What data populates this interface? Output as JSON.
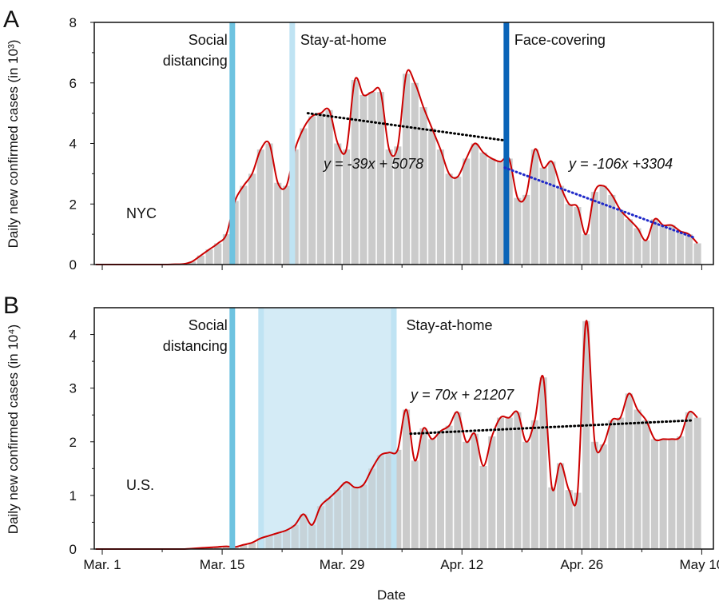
{
  "chart_data": [
    {
      "type": "bar",
      "panel_label": "A",
      "region_label": "NYC",
      "title": "",
      "xlabel": "",
      "ylabel": "Daily new confirmed cases (in 10³)",
      "x_start_date": "Mar. 1",
      "ylim": [
        0,
        8
      ],
      "yticks": [
        0,
        2,
        4,
        6,
        8
      ],
      "yticks_minor": [
        1,
        3,
        5,
        7
      ],
      "values": [
        0,
        0,
        0,
        0,
        0,
        0,
        0,
        0,
        0.01,
        0.02,
        0.1,
        0.3,
        0.5,
        0.7,
        1.0,
        2.1,
        2.6,
        3.0,
        3.8,
        4.0,
        2.7,
        2.6,
        3.8,
        4.5,
        4.9,
        5.0,
        5.1,
        4.0,
        3.8,
        6.1,
        5.6,
        5.7,
        5.7,
        3.8,
        3.9,
        6.3,
        6.0,
        5.2,
        4.5,
        3.8,
        3.0,
        2.9,
        3.5,
        4.0,
        3.7,
        3.5,
        3.4,
        3.5,
        2.2,
        2.3,
        3.8,
        3.2,
        3.4,
        2.6,
        2.0,
        1.9,
        1.0,
        2.4,
        2.6,
        2.3,
        1.8,
        1.5,
        1.2,
        0.8,
        1.5,
        1.3,
        1.3,
        1.1,
        1.0,
        0.7
      ],
      "smoothed_series_color": "#cc0000",
      "bar_color": "#c8c8c8",
      "policies": [
        {
          "label_lines": [
            "Social",
            "distancing"
          ],
          "day": 15,
          "color": "#6ec3e0"
        },
        {
          "label_lines": [
            "Stay-at-home"
          ],
          "day": 22,
          "color": "#bfe3f3"
        },
        {
          "label_lines": [
            "Face-covering"
          ],
          "day": 47,
          "color": "#0a64b8"
        }
      ],
      "trendlines": [
        {
          "equation": "y = -39x + 5078",
          "from_day": 24,
          "to_day": 47,
          "from_y": 5.0,
          "to_y": 4.1,
          "color": "#000000"
        },
        {
          "equation": "y = -106x +3304",
          "from_day": 47,
          "to_day": 69,
          "from_y": 3.2,
          "to_y": 0.9,
          "color": "#1e28c8"
        }
      ]
    },
    {
      "type": "bar",
      "panel_label": "B",
      "region_label": "U.S.",
      "title": "",
      "xlabel": "Date",
      "ylabel": "Daily new confirmed cases (in 10⁴)",
      "x_start_date": "Mar. 1",
      "ylim": [
        0,
        4.5
      ],
      "yticks": [
        0,
        1,
        2,
        3,
        4
      ],
      "yticks_minor": [
        0.5,
        1.5,
        2.5,
        3.5
      ],
      "xticks": [
        {
          "label": "Mar. 1",
          "day": 0
        },
        {
          "label": "Mar. 15",
          "day": 14
        },
        {
          "label": "Mar. 29",
          "day": 28
        },
        {
          "label": "Apr. 12",
          "day": 42
        },
        {
          "label": "Apr. 26",
          "day": 56
        },
        {
          "label": "May 10",
          "day": 70
        }
      ],
      "values": [
        0,
        0,
        0,
        0,
        0,
        0,
        0,
        0,
        0,
        0,
        0.01,
        0.02,
        0.03,
        0.04,
        0.05,
        0.04,
        0.08,
        0.12,
        0.2,
        0.25,
        0.3,
        0.35,
        0.45,
        0.65,
        0.45,
        0.8,
        0.95,
        1.1,
        1.25,
        1.15,
        1.2,
        1.5,
        1.75,
        1.8,
        1.85,
        2.6,
        1.65,
        2.25,
        2.05,
        2.2,
        2.3,
        2.55,
        2.0,
        2.15,
        1.55,
        2.1,
        2.45,
        2.45,
        2.55,
        2.0,
        2.4,
        3.2,
        1.15,
        1.6,
        1.1,
        1.05,
        4.25,
        2.0,
        1.95,
        2.4,
        2.45,
        2.9,
        2.6,
        2.4,
        2.05,
        2.05,
        2.05,
        2.1,
        2.55,
        2.45
      ],
      "smoothed_series_color": "#cc0000",
      "bar_color": "#c8c8c8",
      "policies": [
        {
          "label_lines": [
            "Social",
            "distancing"
          ],
          "day": 15,
          "color": "#6ec3e0"
        },
        {
          "label_lines": [
            "Stay-at-home"
          ],
          "day_start": 18.5,
          "day_end": 34,
          "color": "#bfe3f3",
          "band": true
        }
      ],
      "trendlines": [
        {
          "equation": "y = 70x + 21207",
          "from_day": 36,
          "to_day": 69,
          "from_y": 2.15,
          "to_y": 2.4,
          "color": "#000000"
        }
      ]
    }
  ]
}
